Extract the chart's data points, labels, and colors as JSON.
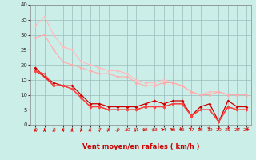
{
  "xlabel": "Vent moyen/en rafales ( km/h )",
  "bg_color": "#cceee8",
  "grid_color": "#99bbbb",
  "xlim": [
    -0.5,
    23.5
  ],
  "ylim": [
    0,
    40
  ],
  "yticks": [
    0,
    5,
    10,
    15,
    20,
    25,
    30,
    35,
    40
  ],
  "xticks": [
    0,
    1,
    2,
    3,
    4,
    5,
    6,
    7,
    8,
    9,
    10,
    11,
    12,
    13,
    14,
    15,
    16,
    17,
    18,
    19,
    20,
    21,
    22,
    23
  ],
  "lines": [
    {
      "x": [
        0,
        1,
        2,
        3,
        4,
        5,
        6,
        7,
        8,
        9,
        10,
        11,
        12,
        13,
        14,
        15,
        16,
        17,
        18,
        19,
        20,
        21,
        22,
        23
      ],
      "y": [
        33,
        36,
        30,
        26,
        25,
        21,
        20,
        19,
        18,
        18,
        17,
        15,
        14,
        14,
        15,
        14,
        13,
        11,
        10,
        11,
        11,
        10,
        10,
        10
      ],
      "color": "#ffbbbb",
      "lw": 0.8,
      "ms": 2.0
    },
    {
      "x": [
        0,
        1,
        2,
        3,
        4,
        5,
        6,
        7,
        8,
        9,
        10,
        11,
        12,
        13,
        14,
        15,
        16,
        17,
        18,
        19,
        20,
        21,
        22,
        23
      ],
      "y": [
        29,
        30,
        25,
        21,
        20,
        19,
        18,
        17,
        17,
        16,
        16,
        14,
        13,
        13,
        14,
        14,
        13,
        11,
        10,
        10,
        11,
        10,
        10,
        10
      ],
      "color": "#ffaaaa",
      "lw": 0.8,
      "ms": 2.0
    },
    {
      "x": [
        0,
        1,
        2,
        3,
        4,
        5,
        6,
        7,
        8,
        9,
        10,
        11,
        12,
        13,
        14,
        15,
        16,
        17,
        18,
        19,
        20,
        21,
        22,
        23
      ],
      "y": [
        19,
        16,
        14,
        13,
        13,
        10,
        7,
        7,
        6,
        6,
        6,
        6,
        7,
        8,
        7,
        8,
        8,
        3,
        6,
        7,
        1,
        8,
        6,
        6
      ],
      "color": "#cc0000",
      "lw": 0.9,
      "ms": 2.0
    },
    {
      "x": [
        0,
        1,
        2,
        3,
        4,
        5,
        6,
        7,
        8,
        9,
        10,
        11,
        12,
        13,
        14,
        15,
        16,
        17,
        18,
        19,
        20,
        21,
        22,
        23
      ],
      "y": [
        18,
        16,
        13,
        13,
        12,
        9,
        6,
        6,
        5,
        5,
        5,
        5,
        6,
        6,
        6,
        7,
        7,
        3,
        5,
        5,
        1,
        6,
        5,
        5
      ],
      "color": "#ee2222",
      "lw": 0.9,
      "ms": 2.0
    },
    {
      "x": [
        0,
        1,
        2,
        3,
        4,
        5,
        6,
        7,
        8,
        9,
        10,
        11,
        12,
        13,
        14,
        15,
        16,
        17,
        18,
        19,
        20,
        21,
        22,
        23
      ],
      "y": [
        18,
        17,
        13,
        13,
        12,
        9,
        6,
        6,
        5,
        5,
        5,
        5,
        6,
        6,
        6,
        7,
        7,
        3,
        5,
        5,
        1,
        6,
        5,
        5
      ],
      "color": "#ff4444",
      "lw": 0.8,
      "ms": 2.0
    }
  ],
  "wind_dirs": [
    180,
    180,
    180,
    180,
    180,
    180,
    202,
    202,
    225,
    225,
    225,
    225,
    247,
    247,
    270,
    270,
    292,
    315,
    315,
    337,
    0,
    22,
    45,
    67
  ]
}
